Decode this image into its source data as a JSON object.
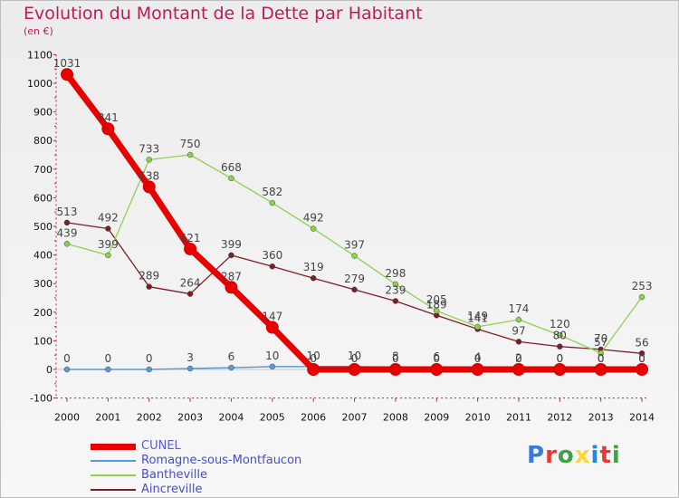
{
  "title": "Evolution du Montant de la Dette par Habitant",
  "unit": "(en €)",
  "logo": {
    "letters": [
      "P",
      "r",
      "o",
      "x",
      "i",
      "t",
      "i"
    ],
    "colors": [
      "#3a7bd5",
      "#e53935",
      "#43a047",
      "#fdd835",
      "#1e88e5",
      "#e53935",
      "#43a047"
    ]
  },
  "colors": {
    "title": "#c2185b",
    "axis": "#c2185b"
  },
  "chart_data": {
    "type": "line",
    "title": "Evolution du Montant de la Dette par Habitant",
    "ylabel": "(en €)",
    "x": [
      "2000",
      "2001",
      "2002",
      "2003",
      "2004",
      "2005",
      "2006",
      "2007",
      "2008",
      "2009",
      "2010",
      "2011",
      "2012",
      "2013",
      "2014"
    ],
    "ylim": [
      -100,
      1100
    ],
    "yticks": [
      -100,
      0,
      100,
      200,
      300,
      400,
      500,
      600,
      700,
      800,
      900,
      1000,
      1100
    ],
    "legend_position": "bottom-left",
    "series": [
      {
        "name": "CUNEL",
        "color": "#e60000",
        "values": [
          1031,
          841,
          638,
          421,
          287,
          147,
          0,
          0,
          0,
          0,
          0,
          0,
          0,
          0,
          0
        ],
        "labels": [
          "1031",
          "841",
          "638",
          "421",
          "287",
          "147",
          "0",
          "0",
          "0",
          "0",
          "0",
          "0",
          "0",
          "0",
          "0"
        ]
      },
      {
        "name": "Romagne-sous-Montfaucon",
        "color": "#5b9bd5",
        "values": [
          0,
          0,
          0,
          3,
          6,
          10,
          10,
          10,
          8,
          6,
          4,
          2,
          0,
          0,
          0
        ],
        "labels": [
          "0",
          "0",
          "0",
          "3",
          "6",
          "10",
          "10",
          "10",
          "8",
          "6",
          "4",
          "2",
          "0",
          "0",
          "0"
        ]
      },
      {
        "name": "Bantheville",
        "color": "#8fd14f",
        "values": [
          439,
          399,
          733,
          750,
          668,
          582,
          492,
          397,
          298,
          205,
          149,
          174,
          120,
          57,
          253
        ],
        "labels": [
          "439",
          "399",
          "733",
          "750",
          "668",
          "582",
          "492",
          "397",
          "298",
          "205",
          "149",
          "174",
          "120",
          "57",
          "253"
        ]
      },
      {
        "name": "Aincreville",
        "color": "#7b1f26",
        "values": [
          513,
          492,
          289,
          264,
          399,
          360,
          319,
          279,
          239,
          189,
          141,
          97,
          80,
          70,
          56
        ],
        "labels": [
          "513",
          "492",
          "289",
          "264",
          "399",
          "360",
          "319",
          "279",
          "239",
          "189",
          "141",
          "97",
          "80",
          "70",
          "56"
        ]
      }
    ]
  }
}
